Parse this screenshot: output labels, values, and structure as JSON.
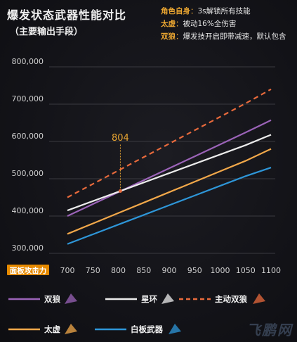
{
  "header": {
    "title": "爆发状态武器性能对比",
    "subtitle": "（主要输出手段）"
  },
  "notes": [
    {
      "key": "角色自身",
      "sep": "：",
      "text": "3s解锁所有技能"
    },
    {
      "key": "太虚",
      "sep": "：",
      "text": "被动16%全伤害"
    },
    {
      "key": "双狼",
      "sep": "：",
      "text": "爆发技开启即带减速，默认包含"
    }
  ],
  "watermark": "飞鹏网",
  "colors": {
    "accent": "#e9a531",
    "axis_label_bg": "#e68a00"
  },
  "chart_data": {
    "type": "line",
    "xlabel": "面板攻击力",
    "ylabel": "",
    "x": [
      700,
      750,
      800,
      850,
      900,
      950,
      1000,
      1050,
      1100
    ],
    "xlim": [
      700,
      1100
    ],
    "ylim": [
      300000,
      800000
    ],
    "yticks": [
      "300,000",
      "400,000",
      "500,000",
      "600,000",
      "700,000",
      "800,000"
    ],
    "ytick_values": [
      300000,
      400000,
      500000,
      600000,
      700000,
      800000
    ],
    "grid": true,
    "legend_placement": "bottom",
    "series": [
      {
        "name": "双狼",
        "color": "#9b63b8",
        "dash": false,
        "icon": "twin-wolves-weapon-icon",
        "values": [
          400000,
          432000,
          464000,
          496000,
          528000,
          560000,
          592000,
          624000,
          657000
        ]
      },
      {
        "name": "星环",
        "color": "#ececec",
        "dash": false,
        "icon": "star-ring-weapon-icon",
        "values": [
          415000,
          440000,
          465000,
          490000,
          515000,
          540000,
          565000,
          590000,
          618000
        ]
      },
      {
        "name": "主动双狼",
        "color": "#e86a3c",
        "dash": true,
        "icon": "active-twin-wolves-weapon-icon",
        "values": [
          450000,
          486000,
          522000,
          558000,
          594000,
          630000,
          666000,
          702000,
          740000
        ]
      },
      {
        "name": "太虚",
        "color": "#f2a84a",
        "dash": false,
        "icon": "taixu-weapon-icon",
        "values": [
          352000,
          380000,
          408000,
          436000,
          464000,
          492000,
          520000,
          548000,
          580000
        ]
      },
      {
        "name": "白板武器",
        "color": "#2e96d8",
        "dash": false,
        "icon": "plain-weapon-icon",
        "values": [
          325000,
          351000,
          377000,
          403000,
          429000,
          455000,
          481000,
          507000,
          530000
        ]
      }
    ],
    "annotations": [
      {
        "label": "804",
        "x": 804,
        "y": 467000
      }
    ]
  }
}
